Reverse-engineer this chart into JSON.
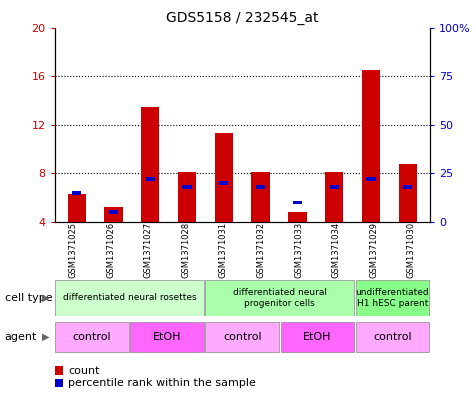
{
  "title": "GDS5158 / 232545_at",
  "samples": [
    "GSM1371025",
    "GSM1371026",
    "GSM1371027",
    "GSM1371028",
    "GSM1371031",
    "GSM1371032",
    "GSM1371033",
    "GSM1371034",
    "GSM1371029",
    "GSM1371030"
  ],
  "counts": [
    6.3,
    5.2,
    13.5,
    8.1,
    11.3,
    8.1,
    4.8,
    8.1,
    16.5,
    8.8
  ],
  "percentiles": [
    15,
    5,
    22,
    18,
    20,
    18,
    10,
    18,
    22,
    18
  ],
  "count_baseline": 4.0,
  "ylim_left": [
    4,
    20
  ],
  "ylim_right": [
    0,
    100
  ],
  "yticks_left": [
    4,
    8,
    12,
    16,
    20
  ],
  "yticks_right": [
    0,
    25,
    50,
    75,
    100
  ],
  "bar_color": "#cc0000",
  "percentile_color": "#0000cc",
  "cell_type_groups": [
    {
      "label": "differentiated neural rosettes",
      "start": 0,
      "end": 4,
      "color": "#ccffcc"
    },
    {
      "label": "differentiated neural\nprogenitor cells",
      "start": 4,
      "end": 8,
      "color": "#aaffaa"
    },
    {
      "label": "undifferentiated\nH1 hESC parent",
      "start": 8,
      "end": 10,
      "color": "#88ff88"
    }
  ],
  "agent_groups": [
    {
      "label": "control",
      "start": 0,
      "end": 2,
      "color": "#ffaaff"
    },
    {
      "label": "EtOH",
      "start": 2,
      "end": 4,
      "color": "#ff66ff"
    },
    {
      "label": "control",
      "start": 4,
      "end": 6,
      "color": "#ffaaff"
    },
    {
      "label": "EtOH",
      "start": 6,
      "end": 8,
      "color": "#ff66ff"
    },
    {
      "label": "control",
      "start": 8,
      "end": 10,
      "color": "#ffaaff"
    }
  ],
  "legend_count_label": "count",
  "legend_percentile_label": "percentile rank within the sample",
  "cell_type_label": "cell type",
  "agent_label": "agent",
  "bar_width": 0.5,
  "plot_bg_color": "#ffffff",
  "axis_label_color_left": "#cc0000",
  "axis_label_color_right": "#0000cc",
  "grid_color": "#000000",
  "title_fontsize": 10,
  "tick_fontsize": 8,
  "annotation_fontsize": 7
}
